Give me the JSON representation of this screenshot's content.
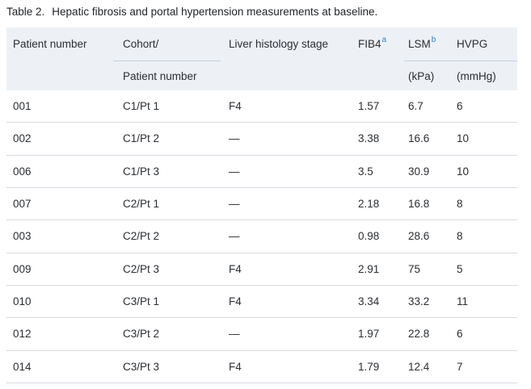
{
  "table": {
    "label": "Table 2.",
    "caption": "Hepatic fibrosis and portal hypertension measurements at baseline.",
    "columns": [
      {
        "line1": "Patient number",
        "line2": ""
      },
      {
        "line1": "Cohort/",
        "line2": "Patient number"
      },
      {
        "line1": "Liver histology stage",
        "line2": ""
      },
      {
        "line1": "FIB4",
        "sup": "a",
        "line2": ""
      },
      {
        "line1": "LSM",
        "sup": "b",
        "line2": "(kPa)"
      },
      {
        "line1": "HVPG",
        "line2": "(mmHg)"
      }
    ],
    "rows": [
      [
        "001",
        "C1/Pt 1",
        "F4",
        "1.57",
        "6.7",
        "6"
      ],
      [
        "002",
        "C1/Pt 2",
        "—",
        "3.38",
        "16.6",
        "10"
      ],
      [
        "006",
        "C1/Pt 3",
        "—",
        "3.5",
        "30.9",
        "10"
      ],
      [
        "007",
        "C2/Pt 1",
        "—",
        "2.18",
        "16.8",
        "8"
      ],
      [
        "003",
        "C2/Pt 2",
        "—",
        "0.98",
        "28.6",
        "8"
      ],
      [
        "009",
        "C2/Pt 3",
        "F4",
        "2.91",
        "75",
        "5"
      ],
      [
        "010",
        "C3/Pt 1",
        "F4",
        "3.34",
        "33.2",
        "11"
      ],
      [
        "012",
        "C3/Pt 2",
        "—",
        "1.97",
        "22.8",
        "6"
      ],
      [
        "014",
        "C3/Pt 3",
        "F4",
        "1.79",
        "12.4",
        "7"
      ]
    ]
  },
  "colors": {
    "header_bg": "#edf1f6",
    "row_border": "#d6dae0",
    "header_rule": "#c5ccd8",
    "footnote_link": "#2e7fc3",
    "text": "#2b2e33"
  }
}
